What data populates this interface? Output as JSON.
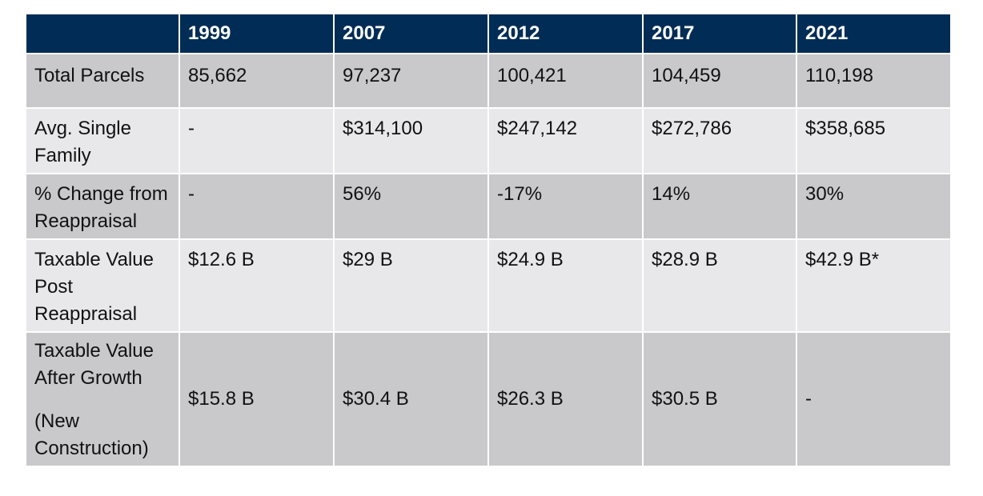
{
  "table": {
    "corner": "",
    "years": [
      "1999",
      "2007",
      "2012",
      "2017",
      "2021"
    ],
    "rows": [
      {
        "label": "Total Parcels",
        "values": [
          "85,662",
          "97,237",
          "100,421",
          "104,459",
          "110,198"
        ]
      },
      {
        "label_lines": [
          "Avg. Single",
          "Family"
        ],
        "values": [
          "-",
          "$314,100",
          "$247,142",
          "$272,786",
          "$358,685"
        ]
      },
      {
        "label_lines": [
          "% Change from",
          "Reappraisal"
        ],
        "values": [
          "-",
          "56%",
          "-17%",
          "14%",
          "30%"
        ]
      },
      {
        "label_lines": [
          "Taxable Value",
          "Post",
          "Reappraisal"
        ],
        "values": [
          "$12.6 B",
          "$29 B",
          "$24.9 B",
          "$28.9 B",
          "$42.9 B*"
        ]
      },
      {
        "label_lines": [
          "Taxable Value",
          "After Growth"
        ],
        "label_note_lines": [
          "(New",
          "Construction)"
        ],
        "values": [
          "$15.8 B",
          "$30.4 B",
          "$26.3 B",
          "$30.5 B",
          "-"
        ]
      }
    ]
  },
  "colors": {
    "header_bg": "#002c55",
    "row_dark": "#c9c9cc",
    "row_light": "#e8e8ea"
  }
}
